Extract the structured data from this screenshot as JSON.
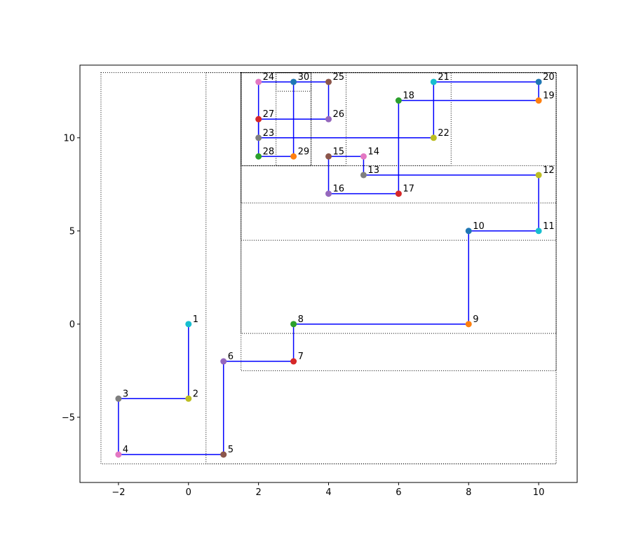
{
  "chart_data": {
    "type": "line",
    "title": "",
    "xlabel": "",
    "ylabel": "",
    "xlim": [
      -3.1,
      11.1
    ],
    "ylim": [
      -8.5,
      13.9
    ],
    "xticks": [
      -2,
      0,
      2,
      4,
      6,
      8,
      10
    ],
    "yticks": [
      -5,
      0,
      5,
      10
    ],
    "xtick_labels": [
      "−2",
      "0",
      "2",
      "4",
      "6",
      "8",
      "10"
    ],
    "ytick_labels": [
      "−5",
      "0",
      "5",
      "10"
    ],
    "grid": false,
    "line_color": "#0000ff",
    "path_edges": [
      [
        1,
        2
      ],
      [
        2,
        3
      ],
      [
        3,
        4
      ],
      [
        4,
        5
      ],
      [
        5,
        6
      ],
      [
        6,
        7
      ],
      [
        7,
        8
      ],
      [
        8,
        9
      ],
      [
        9,
        10
      ],
      [
        10,
        11
      ],
      [
        11,
        12
      ],
      [
        12,
        13
      ],
      [
        13,
        14
      ],
      [
        14,
        15
      ],
      [
        15,
        16
      ],
      [
        16,
        17
      ],
      [
        17,
        18
      ],
      [
        18,
        19
      ],
      [
        19,
        20
      ],
      [
        20,
        21
      ],
      [
        21,
        22
      ],
      [
        22,
        23
      ],
      [
        23,
        24
      ],
      [
        24,
        25
      ],
      [
        25,
        26
      ],
      [
        26,
        27
      ],
      [
        27,
        28
      ],
      [
        28,
        29
      ],
      [
        29,
        30
      ]
    ],
    "points": [
      {
        "label": "1",
        "x": 0,
        "y": 0,
        "color": "#17becf"
      },
      {
        "label": "2",
        "x": 0,
        "y": -4,
        "color": "#bcbd22"
      },
      {
        "label": "3",
        "x": -2,
        "y": -4,
        "color": "#7f7f7f"
      },
      {
        "label": "4",
        "x": -2,
        "y": -7,
        "color": "#e377c2"
      },
      {
        "label": "5",
        "x": 1,
        "y": -7,
        "color": "#8c564b"
      },
      {
        "label": "6",
        "x": 1,
        "y": -2,
        "color": "#9467bd"
      },
      {
        "label": "7",
        "x": 3,
        "y": -2,
        "color": "#d62728"
      },
      {
        "label": "8",
        "x": 3,
        "y": 0,
        "color": "#2ca02c"
      },
      {
        "label": "9",
        "x": 8,
        "y": 0,
        "color": "#ff7f0e"
      },
      {
        "label": "10",
        "x": 8,
        "y": 5,
        "color": "#1f77b4"
      },
      {
        "label": "11",
        "x": 10,
        "y": 5,
        "color": "#17becf"
      },
      {
        "label": "12",
        "x": 10,
        "y": 8,
        "color": "#bcbd22"
      },
      {
        "label": "13",
        "x": 5,
        "y": 8,
        "color": "#7f7f7f"
      },
      {
        "label": "14",
        "x": 5,
        "y": 9,
        "color": "#e377c2"
      },
      {
        "label": "15",
        "x": 4,
        "y": 9,
        "color": "#8c564b"
      },
      {
        "label": "16",
        "x": 4,
        "y": 7,
        "color": "#9467bd"
      },
      {
        "label": "17",
        "x": 6,
        "y": 7,
        "color": "#d62728"
      },
      {
        "label": "18",
        "x": 6,
        "y": 12,
        "color": "#2ca02c"
      },
      {
        "label": "19",
        "x": 10,
        "y": 12,
        "color": "#ff7f0e"
      },
      {
        "label": "20",
        "x": 10,
        "y": 13,
        "color": "#1f77b4"
      },
      {
        "label": "21",
        "x": 7,
        "y": 13,
        "color": "#17becf"
      },
      {
        "label": "22",
        "x": 7,
        "y": 10,
        "color": "#bcbd22"
      },
      {
        "label": "23",
        "x": 2,
        "y": 10,
        "color": "#7f7f7f"
      },
      {
        "label": "24",
        "x": 2,
        "y": 13,
        "color": "#e377c2"
      },
      {
        "label": "25",
        "x": 4,
        "y": 13,
        "color": "#8c564b"
      },
      {
        "label": "26",
        "x": 4,
        "y": 11,
        "color": "#9467bd"
      },
      {
        "label": "27",
        "x": 2,
        "y": 11,
        "color": "#d62728"
      },
      {
        "label": "28",
        "x": 2,
        "y": 9,
        "color": "#2ca02c"
      },
      {
        "label": "29",
        "x": 3,
        "y": 9,
        "color": "#ff7f0e"
      },
      {
        "label": "30",
        "x": 3,
        "y": 13,
        "color": "#1f77b4"
      }
    ],
    "boxes": [
      {
        "x0": -2.5,
        "x1": 10.5,
        "y0": -7.5,
        "y1": 13.5
      },
      {
        "x0": 0.5,
        "x1": 10.5,
        "y0": -7.5,
        "y1": 13.5
      },
      {
        "x0": 1.5,
        "x1": 10.5,
        "y0": -2.5,
        "y1": 13.5
      },
      {
        "x0": 1.5,
        "x1": 10.5,
        "y0": -0.5,
        "y1": 13.5
      },
      {
        "x0": 1.5,
        "x1": 10.5,
        "y0": 4.5,
        "y1": 13.5
      },
      {
        "x0": 1.5,
        "x1": 10.5,
        "y0": 6.5,
        "y1": 13.5
      },
      {
        "x0": 1.5,
        "x1": 10.5,
        "y0": 8.5,
        "y1": 13.5
      },
      {
        "x0": 1.5,
        "x1": 7.5,
        "y0": 8.5,
        "y1": 13.5
      },
      {
        "x0": 1.5,
        "x1": 4.5,
        "y0": 8.5,
        "y1": 13.5
      },
      {
        "x0": 1.5,
        "x1": 3.5,
        "y0": 8.5,
        "y1": 13.5
      },
      {
        "x0": 2.5,
        "x1": 3.5,
        "y0": 8.5,
        "y1": 13.5
      },
      {
        "x0": 2.5,
        "x1": 3.5,
        "y0": 12.5,
        "y1": 13.5
      }
    ]
  }
}
